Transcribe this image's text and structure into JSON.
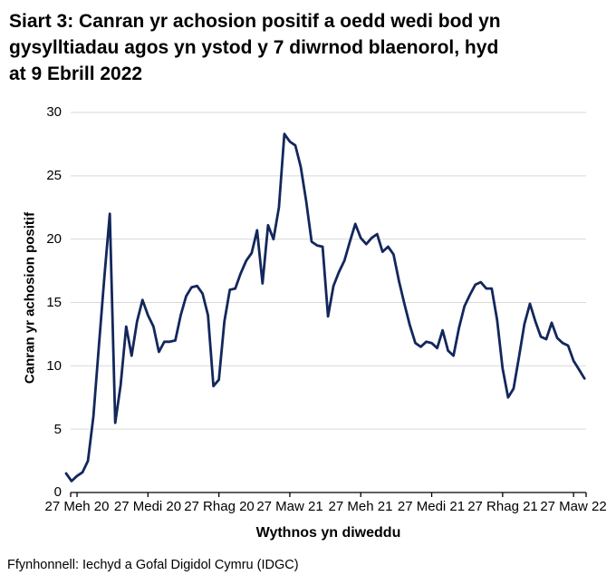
{
  "header": {
    "title_lines": [
      "Siart 3: Canran yr achosion positif a oedd wedi bod yn",
      "gysylltiadau agos yn ystod y 7 diwrnod blaenorol, hyd",
      "at 9 Ebrill 2022"
    ]
  },
  "footer": {
    "source": "Ffynhonnell: Iechyd a Gofal Digidol Cymru (IDGC)"
  },
  "chart_data": {
    "type": "line",
    "title": "Siart 3: Canran yr achosion positif a oedd wedi bod yn gysylltiadau agos yn ystod y 7 diwrnod blaenorol, hyd at 9 Ebrill 2022",
    "xlabel": "Wythnos yn diweddu",
    "ylabel": "Canran yr achosion positif",
    "ylim": [
      0,
      30
    ],
    "y_ticks": [
      0,
      5,
      10,
      15,
      20,
      25,
      30
    ],
    "x_tick_labels": [
      "27 Meh 20",
      "27 Medi 20",
      "27 Rhag 20",
      "27 Maw 21",
      "27 Meh 21",
      "27 Medi 21",
      "27 Rhag 21",
      "27 Maw 22"
    ],
    "x_tick_week_indices": [
      2,
      15,
      28,
      41,
      54,
      67,
      80,
      93
    ],
    "grid": "horizontal",
    "legend": "none",
    "line_color": "#13275c",
    "gridline_color": "#d9d9d9",
    "series": [
      {
        "name": "Canran yr achosion positif",
        "values": [
          1.5,
          0.9,
          1.3,
          1.6,
          2.5,
          6.0,
          11.5,
          17.0,
          22.0,
          5.5,
          8.5,
          13.1,
          10.8,
          13.5,
          15.2,
          14.0,
          13.1,
          11.1,
          11.9,
          11.9,
          12.0,
          14.0,
          15.5,
          16.2,
          16.3,
          15.7,
          14.0,
          8.4,
          8.9,
          13.5,
          16.0,
          16.1,
          17.3,
          18.3,
          18.9,
          20.7,
          16.5,
          21.1,
          20.0,
          22.5,
          28.3,
          27.7,
          27.4,
          25.7,
          23.0,
          19.8,
          19.5,
          19.4,
          13.9,
          16.3,
          17.4,
          18.3,
          19.8,
          21.2,
          20.1,
          19.6,
          20.1,
          20.4,
          19.0,
          19.4,
          18.8,
          16.7,
          14.9,
          13.2,
          11.8,
          11.5,
          11.9,
          11.8,
          11.4,
          12.8,
          11.2,
          10.8,
          13.0,
          14.7,
          15.6,
          16.4,
          16.6,
          16.1,
          16.1,
          13.6,
          9.8,
          7.5,
          8.2,
          10.7,
          13.3,
          14.9,
          13.5,
          12.3,
          12.1,
          13.4,
          12.2,
          11.8,
          11.6,
          10.4,
          9.7,
          9.0
        ]
      }
    ]
  }
}
